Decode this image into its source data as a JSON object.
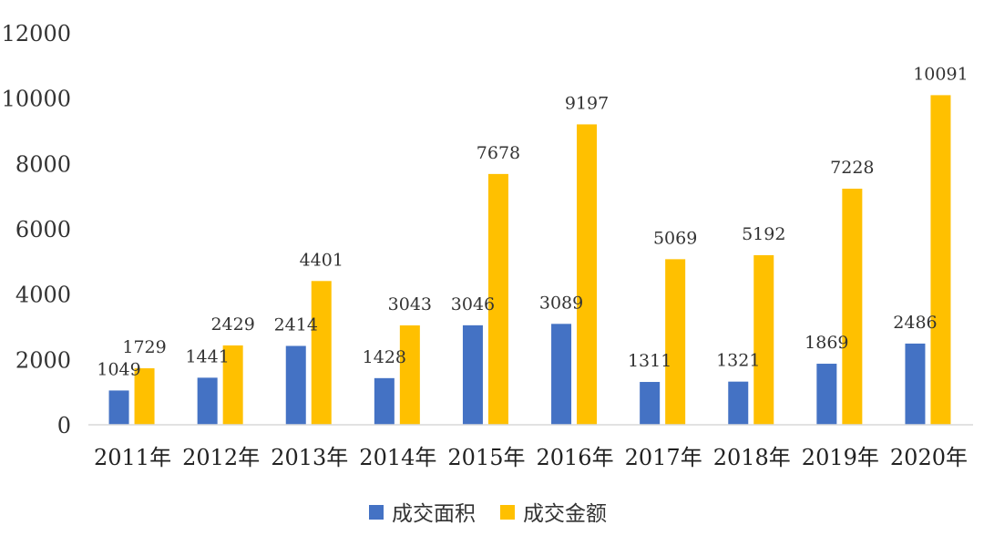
{
  "chart_data": {
    "type": "bar",
    "categories": [
      "2011年",
      "2012年",
      "2013年",
      "2014年",
      "2015年",
      "2016年",
      "2017年",
      "2018年",
      "2019年",
      "2020年"
    ],
    "series": [
      {
        "name": "成交面积",
        "color": "#4472C4",
        "values": [
          1049,
          1441,
          2414,
          1428,
          3046,
          3089,
          1311,
          1321,
          1869,
          2486
        ]
      },
      {
        "name": "成交金额",
        "color": "#FFC000",
        "values": [
          1729,
          2429,
          4401,
          3043,
          7678,
          9197,
          5069,
          5192,
          7228,
          10091
        ]
      }
    ],
    "ylim": [
      0,
      12000
    ],
    "yticks": [
      0,
      2000,
      4000,
      6000,
      8000,
      10000,
      12000
    ],
    "grid": false,
    "legend": "bottom"
  }
}
